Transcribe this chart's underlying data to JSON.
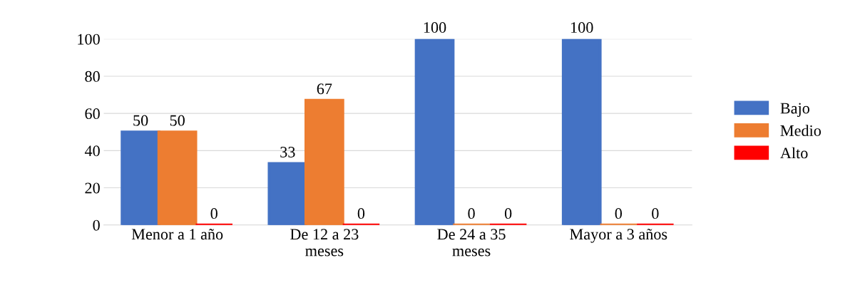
{
  "chart_data": {
    "type": "bar",
    "categories": [
      "Menor a 1 año",
      "De 12 a 23\nmeses",
      "De 24 a 35\nmeses",
      "Mayor a 3 años"
    ],
    "series": [
      {
        "name": "Bajo",
        "color": "#4472c4",
        "values": [
          50,
          33,
          100,
          100
        ]
      },
      {
        "name": "Medio",
        "color": "#ed7d31",
        "values": [
          50,
          67,
          0,
          0
        ]
      },
      {
        "name": "Alto",
        "color": "#ff0000",
        "values": [
          0,
          0,
          0,
          0
        ]
      }
    ],
    "ylim": [
      0,
      100
    ],
    "yticks": [
      0,
      20,
      40,
      60,
      80,
      100
    ],
    "grid": "y",
    "legend": "right",
    "data_labels": true
  }
}
